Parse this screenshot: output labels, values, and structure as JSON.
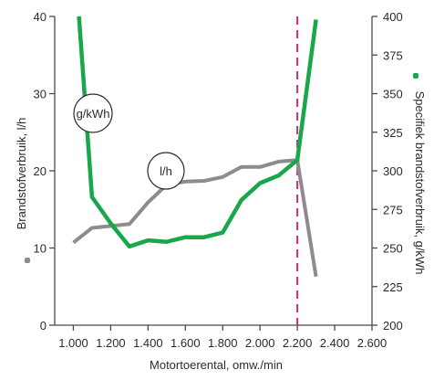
{
  "chart_data": {
    "type": "line",
    "xlabel": "Motortoerental, omw./min",
    "ylabel_left": "Brandstofverbruik, l/h",
    "ylabel_right": "Specifiek brandstofverbruik, g/kWh",
    "x_ticks": [
      "1.000",
      "1.200",
      "1.400",
      "1.600",
      "1.800",
      "2.000",
      "2.200",
      "2.400",
      "2.600"
    ],
    "x_tick_values": [
      1000,
      1200,
      1400,
      1600,
      1800,
      2000,
      2200,
      2400,
      2600
    ],
    "xlim": [
      900,
      2600
    ],
    "ylim_left": [
      0,
      40
    ],
    "ylim_right": [
      200,
      400
    ],
    "y_left_ticks": [
      "0",
      "10",
      "20",
      "30",
      "40"
    ],
    "y_left_tick_values": [
      0,
      10,
      20,
      30,
      40
    ],
    "y_right_ticks": [
      "200",
      "225",
      "250",
      "275",
      "300",
      "325",
      "350",
      "375",
      "400"
    ],
    "y_right_tick_values": [
      200,
      225,
      250,
      275,
      300,
      325,
      350,
      375,
      400
    ],
    "marker_x": 2200,
    "marker_color": "#d6247f",
    "series": [
      {
        "name": "l/h",
        "axis": "left",
        "color": "#8c8c8c",
        "x": [
          1000,
          1100,
          1300,
          1400,
          1500,
          1600,
          1700,
          1800,
          1900,
          2000,
          2100,
          2200,
          2300
        ],
        "values": [
          10.7,
          12.6,
          13.1,
          15.9,
          18.2,
          18.6,
          18.7,
          19.2,
          20.5,
          20.5,
          21.2,
          21.4,
          6.3
        ]
      },
      {
        "name": "g/kWh",
        "axis": "right",
        "color": "#18a84b",
        "x": [
          1030,
          1100,
          1200,
          1300,
          1400,
          1500,
          1600,
          1700,
          1800,
          1900,
          2000,
          2100,
          2200,
          2300
        ],
        "values": [
          400,
          283,
          266,
          251,
          255,
          254,
          257,
          257,
          260,
          281,
          292,
          297,
          307,
          398
        ]
      }
    ],
    "labels": [
      {
        "text": "g/kWh",
        "series": "g/kWh"
      },
      {
        "text": "l/h",
        "series": "l/h"
      }
    ]
  }
}
